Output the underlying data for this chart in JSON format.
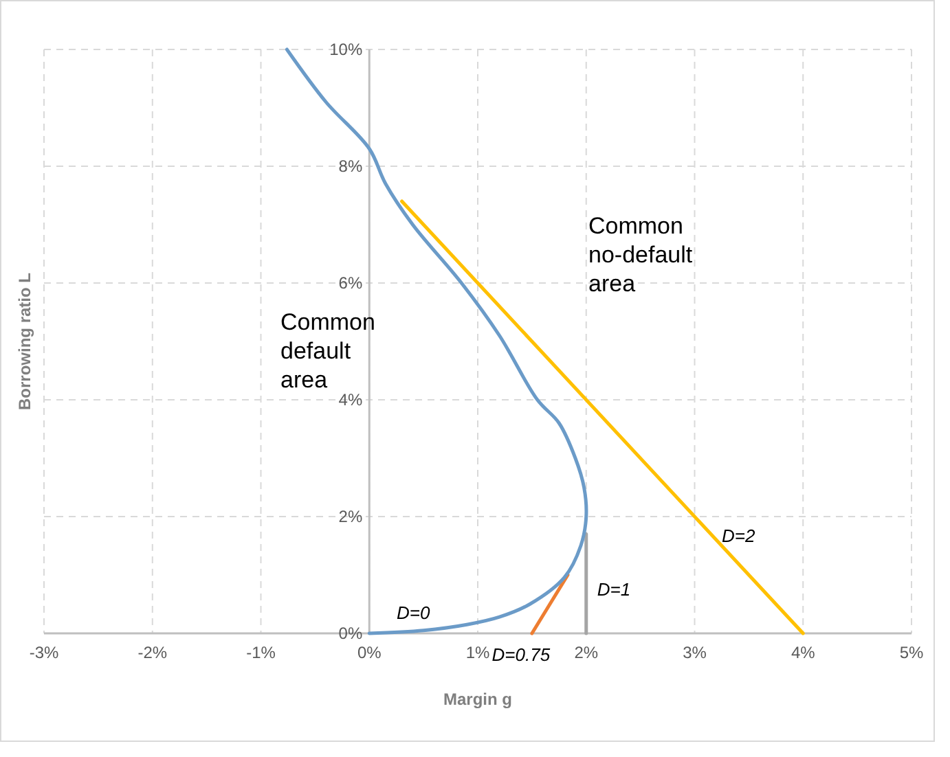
{
  "chart_data": {
    "type": "line",
    "xlabel": "Margin g",
    "ylabel": "Borrowing ratio L",
    "xlim": [
      -3,
      5
    ],
    "ylim": [
      0,
      10
    ],
    "xticks": [
      {
        "value": -3,
        "label": "-3%"
      },
      {
        "value": -2,
        "label": "-2%"
      },
      {
        "value": -1,
        "label": "-1%"
      },
      {
        "value": 0,
        "label": "0%"
      },
      {
        "value": 1,
        "label": "1%"
      },
      {
        "value": 2,
        "label": "2%"
      },
      {
        "value": 3,
        "label": "3%"
      },
      {
        "value": 4,
        "label": "4%"
      },
      {
        "value": 5,
        "label": "5%"
      }
    ],
    "yticks": [
      {
        "value": 0,
        "label": "0%"
      },
      {
        "value": 2,
        "label": "2%"
      },
      {
        "value": 4,
        "label": "4%"
      },
      {
        "value": 6,
        "label": "6%"
      },
      {
        "value": 8,
        "label": "8%"
      },
      {
        "value": 10,
        "label": "10%"
      }
    ],
    "grid": true,
    "line_style": "solid",
    "series": [
      {
        "name": "D=2",
        "color": "#ffc000",
        "x": [
          0.3,
          4
        ],
        "values": [
          7.4,
          0
        ]
      },
      {
        "name": "D=0.75",
        "color": "#ed7d31",
        "x": [
          1.5,
          1.83
        ],
        "values": [
          0,
          1.0
        ]
      },
      {
        "name": "D=1",
        "color": "#a5a5a5",
        "x": [
          2,
          2
        ],
        "values": [
          0,
          1.7
        ]
      },
      {
        "name": "D=0",
        "color": "#6b9bc8",
        "x": [
          0,
          0.5,
          0.9,
          1.2,
          1.48,
          1.8,
          1.95,
          2.0,
          1.98,
          1.9,
          1.75,
          1.55,
          1.2,
          0.85,
          0.4,
          0.15,
          0,
          -0.4,
          -0.76
        ],
        "values": [
          0,
          0.05,
          0.15,
          0.28,
          0.5,
          0.96,
          1.5,
          2.0,
          2.5,
          3.0,
          3.6,
          4.0,
          5.1,
          6.0,
          7.0,
          7.7,
          8.3,
          9.1,
          10
        ]
      }
    ],
    "annotations": [
      "Common default area",
      "Common no-default area"
    ]
  }
}
